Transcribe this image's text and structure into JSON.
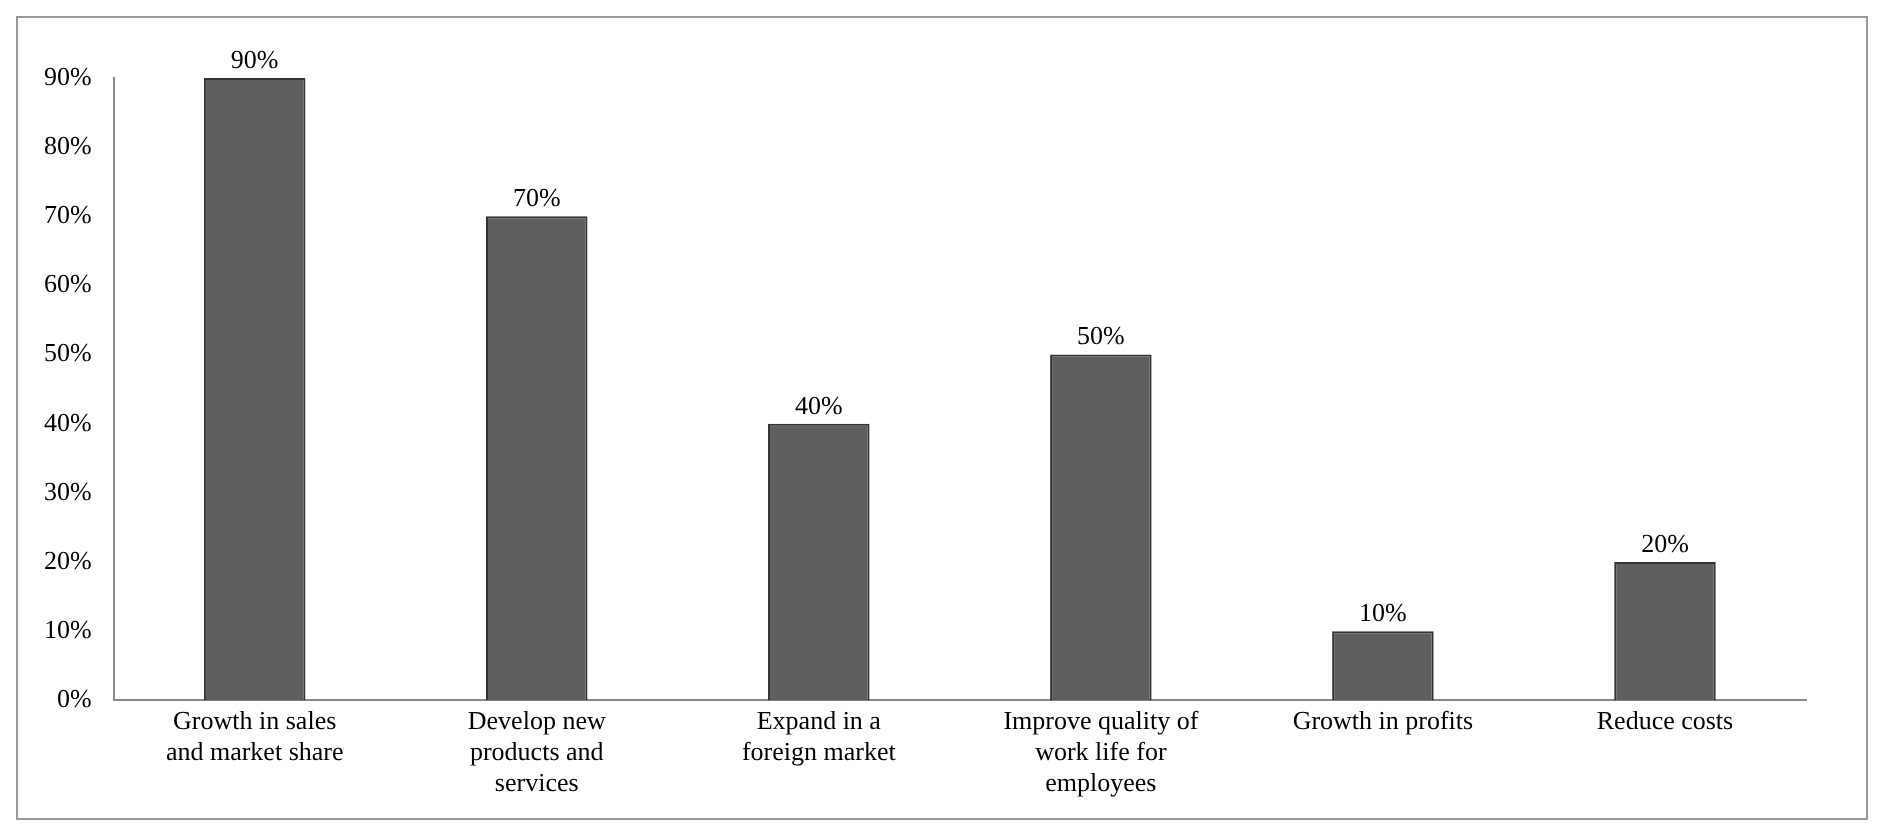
{
  "chart_data": {
    "type": "bar",
    "categories": [
      "Growth in sales and market share",
      "Develop new products and services",
      "Expand in a foreign market",
      "Improve quality of work life for employees",
      "Growth in profits",
      "Reduce costs"
    ],
    "values": [
      90,
      70,
      40,
      50,
      10,
      20
    ],
    "value_labels": [
      "90%",
      "70%",
      "40%",
      "50%",
      "10%",
      "20%"
    ],
    "color": "#5f5f5f",
    "ylim": [
      0,
      90
    ],
    "yticks": [
      {
        "value": 0,
        "label": "0%"
      },
      {
        "value": 10,
        "label": "10%"
      },
      {
        "value": 20,
        "label": "20%"
      },
      {
        "value": 30,
        "label": "30%"
      },
      {
        "value": 40,
        "label": "40%"
      },
      {
        "value": 50,
        "label": "50%"
      },
      {
        "value": 60,
        "label": "60%"
      },
      {
        "value": 70,
        "label": "70%"
      },
      {
        "value": 80,
        "label": "80%"
      },
      {
        "value": 90,
        "label": "90%"
      }
    ],
    "grid": false,
    "legend": false
  }
}
